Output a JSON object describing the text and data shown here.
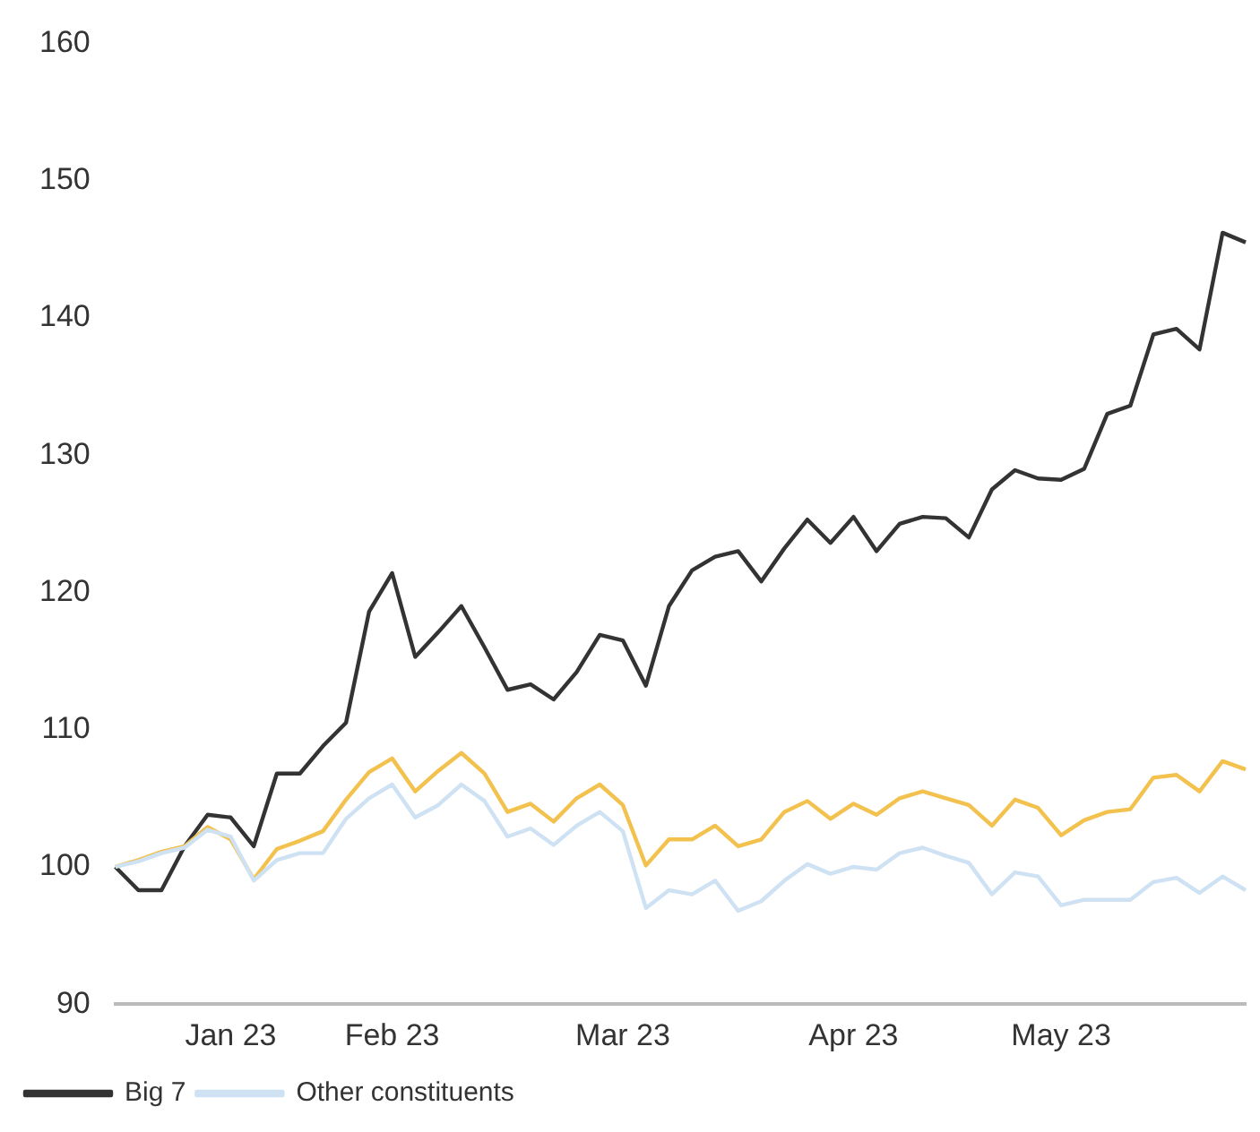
{
  "chart_data": {
    "type": "line",
    "categories": [
      null,
      null,
      null,
      null,
      null,
      "Jan 23",
      null,
      null,
      null,
      null,
      null,
      null,
      "Feb 23",
      null,
      null,
      null,
      null,
      null,
      null,
      null,
      null,
      null,
      "Mar 23",
      null,
      null,
      null,
      null,
      null,
      null,
      null,
      null,
      null,
      "Apr 23",
      null,
      null,
      null,
      null,
      null,
      null,
      null,
      null,
      "May 23",
      null,
      null,
      null,
      null,
      null,
      null,
      null,
      null
    ],
    "series": [
      {
        "name": "Big 7",
        "color": "#333333",
        "values": [
          100,
          98.3,
          98.3,
          101.5,
          103.8,
          103.6,
          101.5,
          106.8,
          106.8,
          108.8,
          110.5,
          118.6,
          121.4,
          115.3,
          117.1,
          119.0,
          116.0,
          112.9,
          113.3,
          112.2,
          114.2,
          116.9,
          116.5,
          113.2,
          119.0,
          121.6,
          122.6,
          123.0,
          120.8,
          123.2,
          125.3,
          123.6,
          125.5,
          123.0,
          125.0,
          125.5,
          125.4,
          124.0,
          127.5,
          128.9,
          128.3,
          128.2,
          129.0,
          133.0,
          133.6,
          138.8,
          139.2,
          137.7,
          146.2,
          145.5
        ]
      },
      {
        "color": "#f2c14e",
        "values": [
          100,
          100.5,
          101.1,
          101.5,
          102.9,
          102.0,
          99.1,
          101.3,
          101.9,
          102.6,
          104.9,
          106.9,
          107.9,
          105.5,
          107.0,
          108.3,
          106.8,
          104.0,
          104.6,
          103.3,
          105.0,
          106.0,
          104.5,
          100.1,
          102.0,
          102.0,
          103.0,
          101.5,
          102.0,
          104.0,
          104.8,
          103.5,
          104.6,
          103.8,
          105.0,
          105.5,
          105.0,
          104.5,
          103.0,
          104.9,
          104.3,
          102.3,
          103.4,
          104.0,
          104.2,
          106.5,
          106.7,
          105.5,
          107.7,
          107.1
        ]
      },
      {
        "name": "Other constituents",
        "color": "#cfe2f3",
        "values": [
          100,
          100.4,
          101,
          101.4,
          102.7,
          102.2,
          99.0,
          100.5,
          101.0,
          101.0,
          103.5,
          105.0,
          106.0,
          103.6,
          104.5,
          106.0,
          104.8,
          102.2,
          102.8,
          101.6,
          103.0,
          104.0,
          102.6,
          97.0,
          98.3,
          98.0,
          99.0,
          96.8,
          97.5,
          99.0,
          100.2,
          99.5,
          100.0,
          99.8,
          101.0,
          101.4,
          100.8,
          100.3,
          98.0,
          99.6,
          99.3,
          97.2,
          97.6,
          97.6,
          97.6,
          98.9,
          99.2,
          98.1,
          99.3,
          98.3
        ]
      }
    ],
    "ylim": [
      90,
      160
    ],
    "yticks": [
      90,
      100,
      110,
      120,
      130,
      140,
      150,
      160
    ],
    "legend": "bottom",
    "marker": "none"
  }
}
